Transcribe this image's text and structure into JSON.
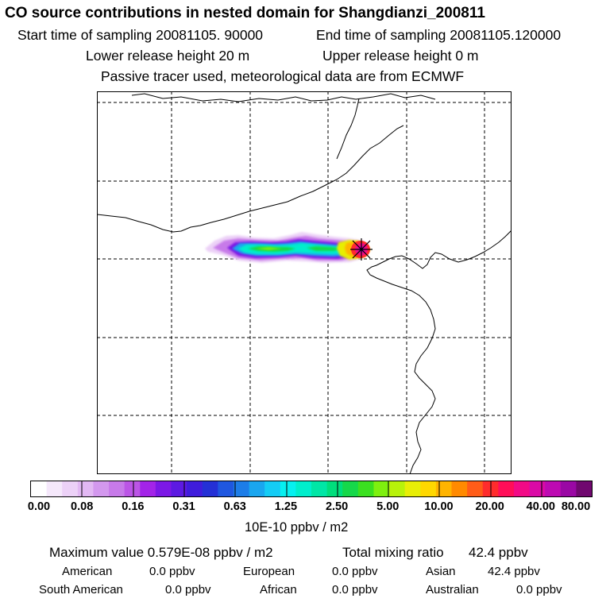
{
  "header": {
    "title": "CO  source contributions in nested domain for Shangdianzi_200811",
    "start": "Start time of sampling 20081105. 90000",
    "end": "End time of sampling 20081105.120000",
    "lower": "Lower release height   20 m",
    "upper": "Upper release height    0 m",
    "passive": "Passive tracer used, meteorological data are from ECMWF"
  },
  "chart_data": {
    "type": "heatmap",
    "title": "CO  source contributions in nested domain for Shangdianzi_200811",
    "colorbar": {
      "tick_labels": [
        "0.00",
        "0.08",
        "0.16",
        "0.31",
        "0.63",
        "1.25",
        "2.50",
        "5.00",
        "10.00",
        "20.00",
        "40.00",
        "80.00"
      ],
      "unit_label": "10E-10 ppbv / m2",
      "colors": [
        "#ffffff",
        "#f5e8fb",
        "#ecd1f7",
        "#e2b8f3",
        "#d398ee",
        "#c77ae9",
        "#bb55e6",
        "#a324e8",
        "#7c18e6",
        "#5d1ae2",
        "#3f1cdc",
        "#2430d6",
        "#1f57e0",
        "#1d7de8",
        "#1aa6ef",
        "#14ccf5",
        "#06f0f0",
        "#00eecc",
        "#00e6a6",
        "#00de7c",
        "#16d84a",
        "#3be020",
        "#7ef00f",
        "#b8f20a",
        "#e8ee06",
        "#ffd800",
        "#ffb400",
        "#ff8a00",
        "#ff5c18",
        "#ff2c2c",
        "#ff0e58",
        "#f20a86",
        "#da0aa6",
        "#bd0ab2",
        "#9a08a4",
        "#70086f"
      ]
    },
    "receptor_site": "Shangdianzi",
    "maximum_value": "0.579E-08",
    "total_mixing_ratio": "42.4"
  },
  "summary": {
    "max_text": "Maximum value  0.579E-08 ppbv / m2",
    "total_label": "Total mixing ratio",
    "total_value": "42.4 ppbv"
  },
  "regions": [
    {
      "name": "American",
      "value": "0.0 ppbv"
    },
    {
      "name": "European",
      "value": "0.0 ppbv"
    },
    {
      "name": "Asian",
      "value": "42.4 ppbv"
    },
    {
      "name": "South American",
      "value": "0.0 ppbv"
    },
    {
      "name": "African",
      "value": "0.0 ppbv"
    },
    {
      "name": "Australian",
      "value": "0.0 ppbv"
    }
  ]
}
